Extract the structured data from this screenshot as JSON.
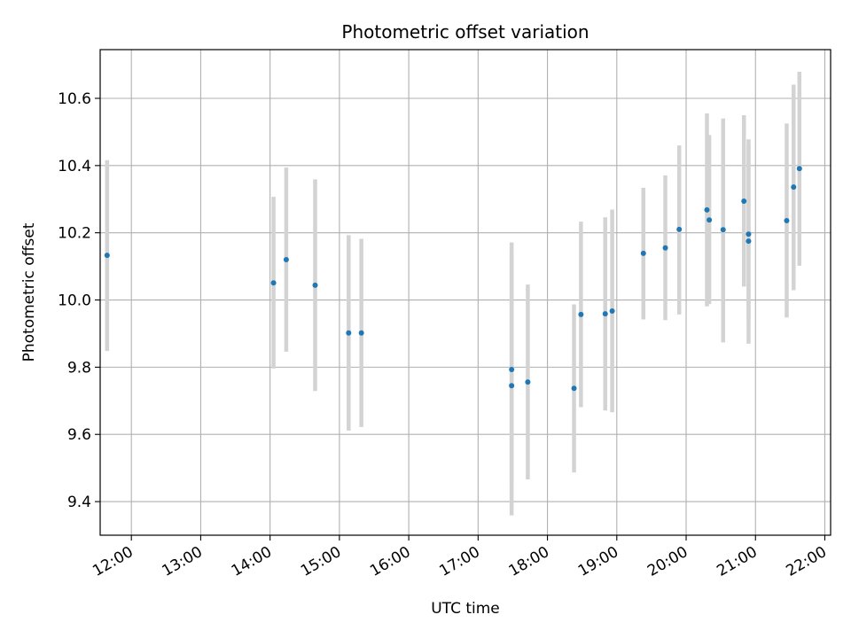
{
  "chart_data": {
    "type": "scatter",
    "title": "Photometric offset variation",
    "xlabel": "UTC time",
    "ylabel": "Photometric offset",
    "x_ticks": [
      "12:00",
      "13:00",
      "14:00",
      "15:00",
      "16:00",
      "17:00",
      "18:00",
      "19:00",
      "20:00",
      "21:00",
      "22:00"
    ],
    "y_ticks": [
      "9.4",
      "9.6",
      "9.8",
      "10.0",
      "10.2",
      "10.4",
      "10.6"
    ],
    "xlim": [
      "11:33",
      "22:05"
    ],
    "ylim": [
      9.3,
      10.745
    ],
    "grid": true,
    "colors": {
      "point": "#1f77b4",
      "errorbar": "#d3d3d3",
      "grid": "#b0b0b0"
    },
    "points": [
      {
        "x": "11:39",
        "y": 10.133,
        "ylo": 9.848,
        "yhi": 10.416
      },
      {
        "x": "14:03",
        "y": 10.051,
        "ylo": 9.796,
        "yhi": 10.307
      },
      {
        "x": "14:14",
        "y": 10.12,
        "ylo": 9.846,
        "yhi": 10.394
      },
      {
        "x": "14:39",
        "y": 10.044,
        "ylo": 9.729,
        "yhi": 10.359
      },
      {
        "x": "15:08",
        "y": 9.902,
        "ylo": 9.611,
        "yhi": 10.193
      },
      {
        "x": "15:19",
        "y": 9.902,
        "ylo": 9.622,
        "yhi": 10.182
      },
      {
        "x": "17:29",
        "y": 9.793,
        "ylo": 9.455,
        "yhi": 10.13
      },
      {
        "x": "17:29",
        "y": 9.745,
        "ylo": 9.359,
        "yhi": 10.171
      },
      {
        "x": "17:43",
        "y": 9.756,
        "ylo": 9.466,
        "yhi": 10.046
      },
      {
        "x": "18:23",
        "y": 9.737,
        "ylo": 9.487,
        "yhi": 9.987
      },
      {
        "x": "18:29",
        "y": 9.957,
        "ylo": 9.681,
        "yhi": 10.233
      },
      {
        "x": "18:50",
        "y": 9.959,
        "ylo": 9.671,
        "yhi": 10.246
      },
      {
        "x": "18:56",
        "y": 9.967,
        "ylo": 9.666,
        "yhi": 10.269
      },
      {
        "x": "19:23",
        "y": 10.139,
        "ylo": 9.942,
        "yhi": 10.334
      },
      {
        "x": "19:42",
        "y": 10.155,
        "ylo": 9.94,
        "yhi": 10.371
      },
      {
        "x": "19:54",
        "y": 10.21,
        "ylo": 9.957,
        "yhi": 10.46
      },
      {
        "x": "20:18",
        "y": 10.268,
        "ylo": 9.981,
        "yhi": 10.555
      },
      {
        "x": "20:20",
        "y": 10.238,
        "ylo": 9.988,
        "yhi": 10.491
      },
      {
        "x": "20:32",
        "y": 10.209,
        "ylo": 9.874,
        "yhi": 10.54
      },
      {
        "x": "20:50",
        "y": 10.294,
        "ylo": 10.04,
        "yhi": 10.55
      },
      {
        "x": "20:54",
        "y": 10.196,
        "ylo": 9.941,
        "yhi": 10.478
      },
      {
        "x": "20:54",
        "y": 10.175,
        "ylo": 9.87,
        "yhi": 10.46
      },
      {
        "x": "21:27",
        "y": 10.236,
        "ylo": 9.948,
        "yhi": 10.525
      },
      {
        "x": "21:33",
        "y": 10.336,
        "ylo": 10.029,
        "yhi": 10.641
      },
      {
        "x": "21:38",
        "y": 10.391,
        "ylo": 10.102,
        "yhi": 10.679
      }
    ]
  }
}
